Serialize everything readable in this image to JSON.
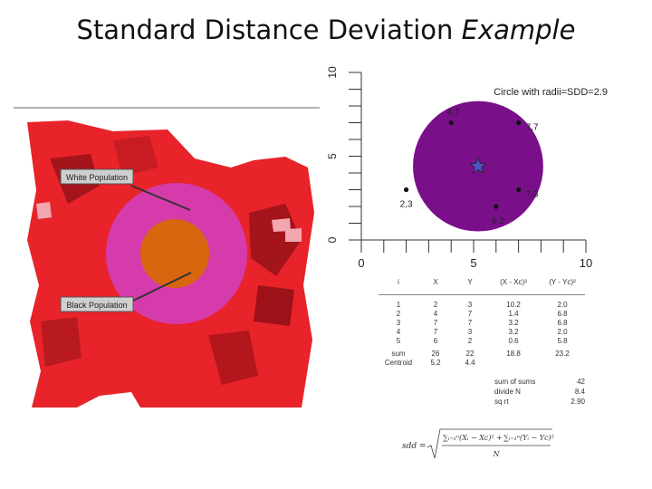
{
  "title": {
    "main": "Standard Distance Deviation",
    "emphasis": "Example"
  },
  "map": {
    "label_white": "White Population",
    "label_black": "Black Population",
    "colors": {
      "base_red": "#e8232a",
      "dark_red": "#a3141b",
      "pink": "#f2a6b0",
      "pink_circle": "#d63bab",
      "orange_circle": "#d7660f"
    }
  },
  "plot": {
    "circle_label": "Circle with radii=SDD=2.9",
    "circle_color": "#7a0f8a",
    "centroid_color": "#4b55c7",
    "y_axis_ticks": [
      "0",
      "5",
      "10"
    ],
    "x_axis_ticks": [
      "0",
      "5",
      "10"
    ],
    "points": [
      {
        "x": 4,
        "y": 7,
        "label": "4,7"
      },
      {
        "x": 7,
        "y": 7,
        "label": "7,7"
      },
      {
        "x": 7,
        "y": 3,
        "label": "7,3"
      },
      {
        "x": 2,
        "y": 3,
        "label": "2,3"
      },
      {
        "x": 6,
        "y": 2,
        "label": "6,2"
      }
    ],
    "centroid": {
      "x": 5.2,
      "y": 4.4
    },
    "radius": 2.9
  },
  "table": {
    "headers": [
      "i",
      "X",
      "Y",
      "(X - Xc)²",
      "(Y - Yc)²"
    ],
    "rows": [
      [
        "1",
        "2",
        "3",
        "10.2",
        "2.0"
      ],
      [
        "2",
        "4",
        "7",
        "1.4",
        "6.8"
      ],
      [
        "3",
        "7",
        "7",
        "3.2",
        "6.8"
      ],
      [
        "4",
        "7",
        "3",
        "3.2",
        "2.0"
      ],
      [
        "5",
        "6",
        "2",
        "0.6",
        "5.8"
      ]
    ],
    "sum_row": [
      "sum",
      "26",
      "22",
      "18.8",
      "23.2"
    ],
    "centroid_row": [
      "Centroid",
      "5.2",
      "4.4"
    ],
    "summary": [
      {
        "label": "sum of sums",
        "value": "42"
      },
      {
        "label": "divide N",
        "value": "8.4"
      },
      {
        "label": "sq rt",
        "value": "2.90"
      }
    ]
  },
  "formula": {
    "lhs": "sdd =",
    "sum1": "∑ᵢ₌₁ⁿ(Xᵢ − Xc)²",
    "plus": "+",
    "sum2": "∑ᵢ₌₁ⁿ(Yᵢ − Yc)²",
    "denominator": "N"
  }
}
